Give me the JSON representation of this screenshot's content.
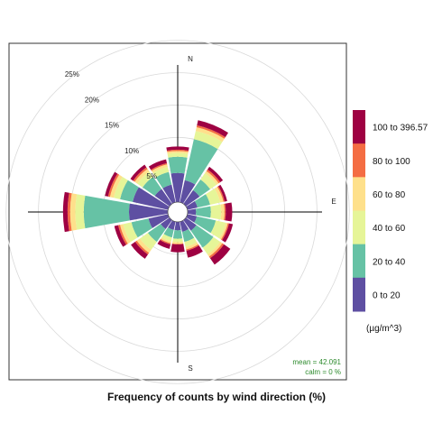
{
  "chart_data": {
    "type": "wind-rose",
    "caption": "Frequency of counts by wind direction (%)",
    "directions": [
      "N",
      "NNE",
      "NE",
      "ENE",
      "E",
      "ESE",
      "SE",
      "SSE",
      "S",
      "SSW",
      "SW",
      "WSW",
      "W",
      "WNW",
      "NW",
      "NNW"
    ],
    "direction_labels": {
      "N": "N",
      "E": "E",
      "S": "S"
    },
    "radial_ticks": [
      "5%",
      "10%",
      "15%",
      "20%",
      "25%"
    ],
    "radial_tick_values": [
      5,
      10,
      15,
      20,
      25
    ],
    "rmax": 25,
    "grid": true,
    "legend": {
      "placement": "right",
      "unit_label": "(µg/m^3)",
      "bins": [
        "0 to 20",
        "20 to 40",
        "40 to 60",
        "60 to 80",
        "80 to 100",
        "100 to 396.57"
      ]
    },
    "colors": [
      "#5e4fa2",
      "#66c2a5",
      "#e6f598",
      "#fee08b",
      "#f46d43",
      "#9e0142"
    ],
    "series": [
      {
        "name": "0 to 20",
        "values": [
          4.5,
          3.5,
          2.6,
          1.6,
          1.3,
          1.5,
          2.0,
          1.6,
          1.3,
          1.3,
          1.7,
          3.1,
          6.0,
          5.6,
          2.8,
          2.8
        ]
      },
      {
        "name": "20 to 40",
        "values": [
          2.5,
          6.5,
          2.0,
          2.0,
          2.3,
          3.0,
          3.2,
          1.6,
          1.3,
          1.2,
          2.4,
          2.7,
          7.0,
          2.0,
          2.3,
          2.0
        ]
      },
      {
        "name": "40 to 60",
        "values": [
          0.6,
          1.3,
          1.2,
          1.6,
          1.6,
          1.6,
          1.3,
          0.8,
          0.5,
          0.6,
          1.5,
          1.3,
          1.3,
          1.0,
          1.0,
          0.8
        ]
      },
      {
        "name": "60 to 80",
        "values": [
          0.3,
          0.6,
          0.4,
          0.5,
          0.5,
          0.3,
          0.4,
          0.4,
          0.3,
          0.3,
          0.6,
          0.5,
          0.8,
          0.6,
          0.5,
          0.4
        ]
      },
      {
        "name": "80 to 100",
        "values": [
          0.2,
          0.3,
          0.3,
          0.2,
          0.2,
          0.2,
          0.3,
          0.2,
          0.1,
          0.2,
          0.3,
          0.3,
          0.4,
          0.3,
          0.3,
          0.2
        ]
      },
      {
        "name": "100 to 396.57",
        "values": [
          0.5,
          0.8,
          0.5,
          0.4,
          1.0,
          0.6,
          1.2,
          1.1,
          1.2,
          0.7,
          0.8,
          0.6,
          0.7,
          0.5,
          0.5,
          0.6
        ]
      }
    ],
    "stats": {
      "mean": "mean =  42.091",
      "calm": "calm =  0 %"
    }
  }
}
